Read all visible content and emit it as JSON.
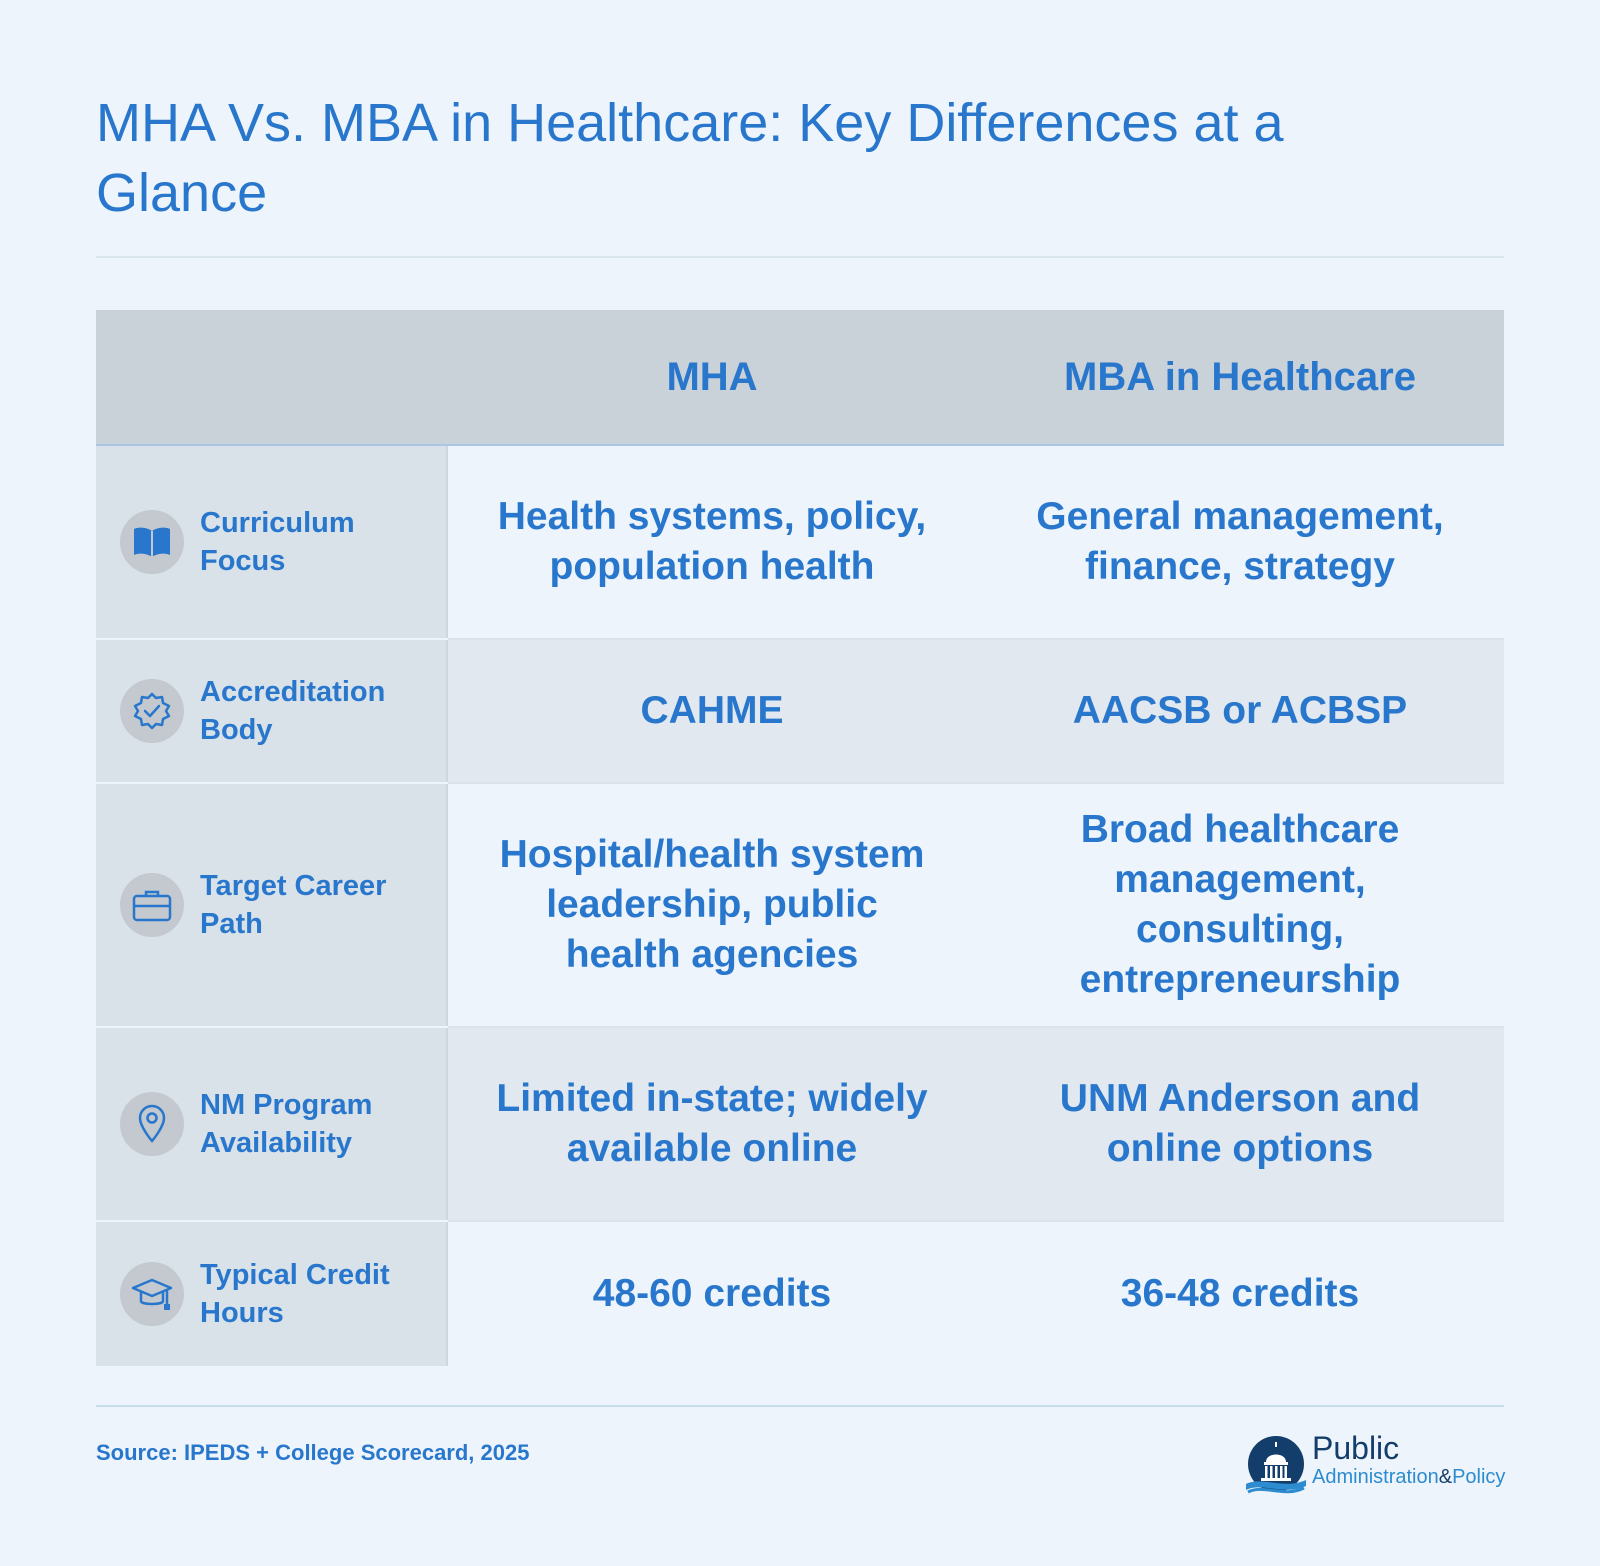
{
  "title": "MHA Vs. MBA in Healthcare: Key Differences at a Glance",
  "table": {
    "headers": [
      "",
      "MHA",
      "MBA in Healthcare"
    ],
    "rows": [
      {
        "icon": "book-icon",
        "label": "Curriculum Focus",
        "mha": "Health systems, policy, population health",
        "mba": "General management, finance, strategy"
      },
      {
        "icon": "badge-check-icon",
        "label": "Accreditation Body",
        "mha": "CAHME",
        "mba": "AACSB or ACBSP"
      },
      {
        "icon": "briefcase-icon",
        "label": "Target Career Path",
        "mha": "Hospital/health system leadership, public health agencies",
        "mba": "Broad healthcare management, consulting, entrepreneurship"
      },
      {
        "icon": "map-pin-icon",
        "label": "NM Program Availability",
        "mha": "Limited in-state; widely available online",
        "mba": "UNM Anderson and online options"
      },
      {
        "icon": "graduation-cap-icon",
        "label": "Typical Credit Hours",
        "mha": "48-60 credits",
        "mba": "36-48 credits"
      }
    ]
  },
  "source": "Source: IPEDS + College Scorecard, 2025",
  "logo": {
    "word1": "Public",
    "word2": "Administration",
    "amp": "&",
    "word3": "Policy"
  },
  "colors": {
    "accent": "#2877cc",
    "background": "#eef4fb",
    "header_bg": "#c9d1d9",
    "label_bg": "#d9e1e9",
    "row_alt_bg": "#e1e8ef"
  }
}
